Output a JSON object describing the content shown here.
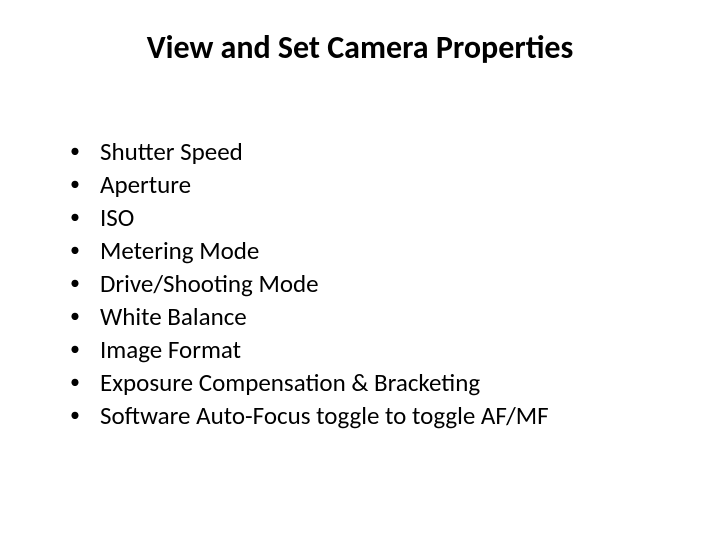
{
  "slide": {
    "title": "View and Set Camera Properties",
    "title_fontsize": 32,
    "title_fontweight": "bold",
    "title_color": "#000000",
    "bullets": [
      "Shutter Speed",
      "Aperture",
      "ISO",
      "Metering Mode",
      "Drive/Shooting Mode",
      "White Balance",
      "Image Format",
      "Exposure Compensation & Bracketing",
      "Software Auto-Focus toggle to toggle AF/MF"
    ],
    "bullet_fontsize": 25,
    "bullet_color": "#000000",
    "bullet_marker": "•",
    "background_color": "#ffffff",
    "font_family": "Calibri"
  }
}
